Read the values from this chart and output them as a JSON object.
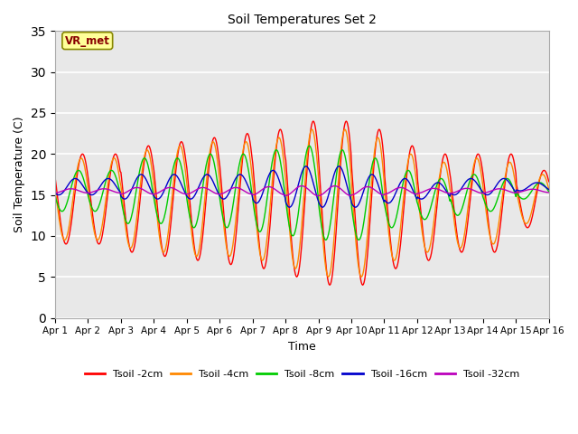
{
  "title": "Soil Temperatures Set 2",
  "xlabel": "Time",
  "ylabel": "Soil Temperature (C)",
  "annotation": "VR_met",
  "ylim": [
    0,
    35
  ],
  "yticks": [
    0,
    5,
    10,
    15,
    20,
    25,
    30,
    35
  ],
  "xlim": [
    0,
    15
  ],
  "xtick_labels": [
    "Apr 1",
    "Apr 2",
    "Apr 3",
    "Apr 4",
    "Apr 5",
    "Apr 6",
    "Apr 7",
    "Apr 8",
    "Apr 9",
    "Apr 10",
    "Apr 11",
    "Apr 12",
    "Apr 13",
    "Apr 14",
    "Apr 15",
    "Apr 16"
  ],
  "series_colors": [
    "#ff0000",
    "#ff8800",
    "#00cc00",
    "#0000cc",
    "#bb00bb"
  ],
  "series_labels": [
    "Tsoil -2cm",
    "Tsoil -4cm",
    "Tsoil -8cm",
    "Tsoil -16cm",
    "Tsoil -32cm"
  ],
  "plot_bg_color": "#e8e8e8",
  "fig_bg_color": "#ffffff",
  "grid_color": "#ffffff",
  "annotation_box_color": "#ffff99",
  "annotation_text_color": "#880000",
  "n_points_per_day": 48,
  "n_days": 15,
  "amp_2cm": [
    11,
    11,
    13,
    14,
    15,
    16,
    17,
    19,
    20,
    19,
    15,
    13,
    12,
    12,
    7
  ],
  "amp_4cm": [
    10,
    10,
    12,
    13,
    14,
    14,
    15,
    17,
    18,
    17,
    13,
    11,
    11,
    10,
    6
  ],
  "amp_8cm": [
    5,
    5,
    8,
    8,
    9,
    9,
    10,
    11,
    11,
    10,
    7,
    5,
    5,
    4,
    2
  ],
  "amp_16cm": [
    2,
    2,
    3,
    3,
    3,
    3,
    4,
    5,
    5,
    4,
    3,
    2,
    2,
    2,
    1
  ],
  "amp_32cm": [
    0.5,
    0.5,
    0.8,
    0.8,
    0.8,
    0.8,
    1.0,
    1.2,
    1.2,
    1.0,
    0.8,
    0.6,
    0.6,
    0.5,
    0.4
  ],
  "base_2cm": [
    14.5,
    14.5,
    14.5,
    14.5,
    14.5,
    14.5,
    14.5,
    14.5,
    14.0,
    13.5,
    13.5,
    13.5,
    14.0,
    14.0,
    14.5
  ],
  "base_4cm": [
    14.5,
    14.5,
    14.5,
    14.5,
    14.5,
    14.5,
    14.5,
    14.5,
    14.0,
    13.5,
    13.5,
    13.5,
    14.0,
    14.0,
    14.5
  ],
  "base_8cm": [
    15.5,
    15.5,
    15.5,
    15.5,
    15.5,
    15.5,
    15.5,
    15.5,
    15.0,
    14.5,
    14.5,
    14.5,
    15.0,
    15.0,
    15.5
  ],
  "base_16cm": [
    16.0,
    16.0,
    16.0,
    16.0,
    16.0,
    16.0,
    16.0,
    16.0,
    16.0,
    15.5,
    15.5,
    15.5,
    16.0,
    16.0,
    16.0
  ],
  "base_32cm": [
    15.5,
    15.5,
    15.5,
    15.5,
    15.5,
    15.5,
    15.5,
    15.5,
    15.5,
    15.5,
    15.5,
    15.5,
    15.5,
    15.5,
    15.5
  ],
  "phase_2cm": 0.0,
  "phase_4cm": 0.04,
  "phase_8cm": 0.12,
  "phase_16cm": 0.22,
  "phase_32cm": 0.35
}
